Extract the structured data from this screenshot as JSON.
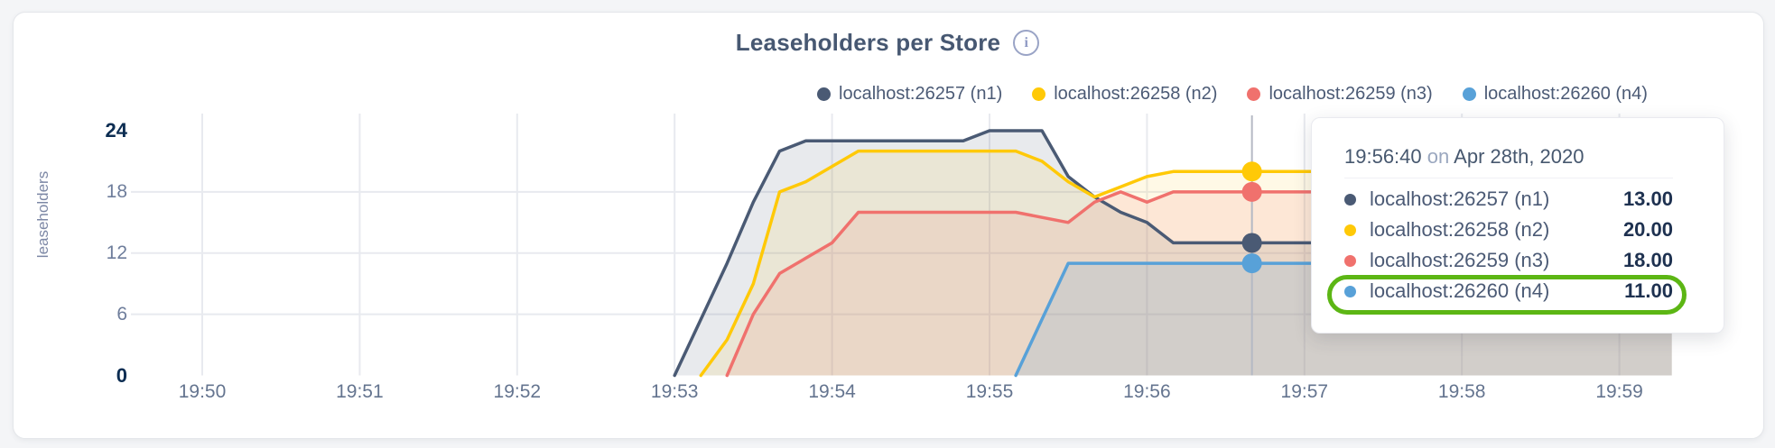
{
  "page": {
    "background": "#f4f5f7",
    "accent_annotation_color": "#5cb614"
  },
  "chart_data": {
    "type": "area",
    "title": "Leaseholders per Store",
    "info_icon_glyph": "i",
    "ylabel": "leaseholders",
    "ylim": [
      0,
      24
    ],
    "y_ticks": [
      0,
      6,
      12,
      18,
      24
    ],
    "y_bold_ticks": [
      0,
      24
    ],
    "y_grid_ticks": [
      6,
      12,
      18
    ],
    "x_ticks": [
      "19:50",
      "19:51",
      "19:52",
      "19:53",
      "19:54",
      "19:55",
      "19:56",
      "19:57",
      "19:58",
      "19:59"
    ],
    "grid": true,
    "legend_position": "top-right",
    "series": [
      {
        "name": "localhost:26257 (n1)",
        "color": "#4a5a74",
        "fill": "rgba(74,90,116,0.13)",
        "points": [
          [
            "19:53:00",
            0
          ],
          [
            "19:53:10",
            5.5
          ],
          [
            "19:53:20",
            11
          ],
          [
            "19:53:30",
            17
          ],
          [
            "19:53:40",
            22
          ],
          [
            "19:53:50",
            23
          ],
          [
            "19:54:00",
            23
          ],
          [
            "19:54:10",
            23
          ],
          [
            "19:54:20",
            23
          ],
          [
            "19:54:30",
            23
          ],
          [
            "19:54:40",
            23
          ],
          [
            "19:54:50",
            23
          ],
          [
            "19:55:00",
            24
          ],
          [
            "19:55:10",
            24
          ],
          [
            "19:55:20",
            24
          ],
          [
            "19:55:30",
            19.5
          ],
          [
            "19:55:40",
            17.5
          ],
          [
            "19:55:50",
            16
          ],
          [
            "19:56:00",
            15
          ],
          [
            "19:56:10",
            13
          ],
          [
            "19:56:20",
            13
          ],
          [
            "19:56:30",
            13
          ],
          [
            "19:56:40",
            13
          ],
          [
            "19:56:50",
            13
          ],
          [
            "19:57:00",
            13
          ],
          [
            "19:57:10",
            13
          ],
          [
            "19:57:20",
            13
          ],
          [
            "19:57:30",
            13
          ],
          [
            "19:57:40",
            13
          ],
          [
            "19:57:50",
            13
          ],
          [
            "19:58:00",
            13
          ],
          [
            "19:58:10",
            13
          ],
          [
            "19:58:20",
            13
          ],
          [
            "19:58:30",
            13
          ],
          [
            "19:58:40",
            13
          ],
          [
            "19:58:50",
            13
          ],
          [
            "19:59:00",
            13
          ],
          [
            "19:59:10",
            13
          ],
          [
            "19:59:20",
            13
          ]
        ]
      },
      {
        "name": "localhost:26258 (n2)",
        "color": "#ffc907",
        "fill": "rgba(255,201,7,0.10)",
        "points": [
          [
            "19:53:10",
            0
          ],
          [
            "19:53:20",
            3.5
          ],
          [
            "19:53:30",
            9
          ],
          [
            "19:53:40",
            18
          ],
          [
            "19:53:50",
            19
          ],
          [
            "19:54:00",
            20.5
          ],
          [
            "19:54:10",
            22
          ],
          [
            "19:54:20",
            22
          ],
          [
            "19:54:30",
            22
          ],
          [
            "19:54:40",
            22
          ],
          [
            "19:54:50",
            22
          ],
          [
            "19:55:00",
            22
          ],
          [
            "19:55:10",
            22
          ],
          [
            "19:55:20",
            21
          ],
          [
            "19:55:30",
            19
          ],
          [
            "19:55:40",
            17.5
          ],
          [
            "19:55:50",
            18.5
          ],
          [
            "19:56:00",
            19.5
          ],
          [
            "19:56:10",
            20
          ],
          [
            "19:56:20",
            20
          ],
          [
            "19:56:30",
            20
          ],
          [
            "19:56:40",
            20
          ],
          [
            "19:56:50",
            20
          ],
          [
            "19:57:00",
            20
          ],
          [
            "19:57:10",
            20
          ],
          [
            "19:57:20",
            20
          ],
          [
            "19:57:30",
            20
          ],
          [
            "19:57:40",
            20
          ],
          [
            "19:57:50",
            20
          ],
          [
            "19:58:00",
            20
          ],
          [
            "19:58:10",
            20
          ],
          [
            "19:58:20",
            20
          ],
          [
            "19:58:30",
            20
          ],
          [
            "19:58:40",
            20
          ],
          [
            "19:58:50",
            20
          ],
          [
            "19:59:00",
            20
          ],
          [
            "19:59:10",
            20
          ],
          [
            "19:59:20",
            20
          ]
        ]
      },
      {
        "name": "localhost:26259 (n3)",
        "color": "#f0716d",
        "fill": "rgba(240,113,109,0.13)",
        "points": [
          [
            "19:53:20",
            0
          ],
          [
            "19:53:30",
            6
          ],
          [
            "19:53:40",
            10
          ],
          [
            "19:53:50",
            11.5
          ],
          [
            "19:54:00",
            13
          ],
          [
            "19:54:10",
            16
          ],
          [
            "19:54:20",
            16
          ],
          [
            "19:54:30",
            16
          ],
          [
            "19:54:40",
            16
          ],
          [
            "19:54:50",
            16
          ],
          [
            "19:55:00",
            16
          ],
          [
            "19:55:10",
            16
          ],
          [
            "19:55:20",
            15.5
          ],
          [
            "19:55:30",
            15
          ],
          [
            "19:55:40",
            17
          ],
          [
            "19:55:50",
            18
          ],
          [
            "19:56:00",
            17
          ],
          [
            "19:56:10",
            18
          ],
          [
            "19:56:20",
            18
          ],
          [
            "19:56:30",
            18
          ],
          [
            "19:56:40",
            18
          ],
          [
            "19:56:50",
            18
          ],
          [
            "19:57:00",
            18
          ],
          [
            "19:57:10",
            18
          ],
          [
            "19:57:20",
            18
          ],
          [
            "19:57:30",
            18
          ],
          [
            "19:57:40",
            18
          ],
          [
            "19:57:50",
            18
          ],
          [
            "19:58:00",
            18
          ],
          [
            "19:58:10",
            18
          ],
          [
            "19:58:20",
            18
          ],
          [
            "19:58:30",
            18
          ],
          [
            "19:58:40",
            18
          ],
          [
            "19:58:50",
            18
          ],
          [
            "19:59:00",
            18
          ],
          [
            "19:59:10",
            18
          ],
          [
            "19:59:20",
            18
          ]
        ]
      },
      {
        "name": "localhost:26260 (n4)",
        "color": "#58a1d8",
        "fill": "rgba(88,161,216,0.16)",
        "points": [
          [
            "19:55:10",
            0
          ],
          [
            "19:55:20",
            5.5
          ],
          [
            "19:55:30",
            11
          ],
          [
            "19:55:40",
            11
          ],
          [
            "19:55:50",
            11
          ],
          [
            "19:56:00",
            11
          ],
          [
            "19:56:10",
            11
          ],
          [
            "19:56:20",
            11
          ],
          [
            "19:56:30",
            11
          ],
          [
            "19:56:40",
            11
          ],
          [
            "19:56:50",
            11
          ],
          [
            "19:57:00",
            11
          ],
          [
            "19:57:10",
            11
          ],
          [
            "19:57:20",
            11
          ],
          [
            "19:57:30",
            11
          ],
          [
            "19:57:40",
            11
          ],
          [
            "19:57:50",
            11
          ],
          [
            "19:58:00",
            11
          ],
          [
            "19:58:10",
            11
          ],
          [
            "19:58:20",
            11
          ],
          [
            "19:58:30",
            11
          ],
          [
            "19:58:40",
            11
          ],
          [
            "19:58:50",
            11
          ],
          [
            "19:59:00",
            11
          ],
          [
            "19:59:10",
            11
          ],
          [
            "19:59:20",
            11
          ]
        ]
      }
    ]
  },
  "tooltip": {
    "time": "19:56:40",
    "on_word": "on",
    "date": "Apr 28th, 2020",
    "rows": [
      {
        "name": "localhost:26257 (n1)",
        "value": "13.00"
      },
      {
        "name": "localhost:26258 (n2)",
        "value": "20.00"
      },
      {
        "name": "localhost:26259 (n3)",
        "value": "18.00"
      },
      {
        "name": "localhost:26260 (n4)",
        "value": "11.00"
      }
    ],
    "highlighted_row": 3
  }
}
